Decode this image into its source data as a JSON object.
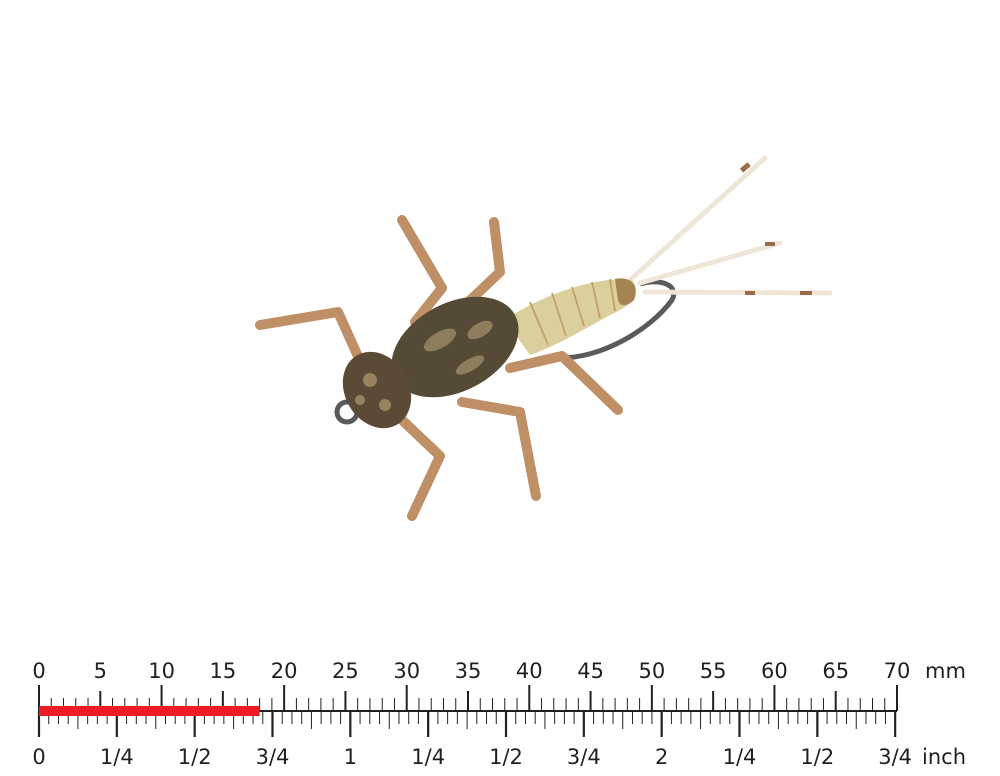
{
  "ruler": {
    "mm_unit": "mm",
    "inch_unit": "inch",
    "mm_labels": [
      "0",
      "5",
      "10",
      "15",
      "20",
      "25",
      "30",
      "35",
      "40",
      "45",
      "50",
      "55",
      "60",
      "65",
      "70"
    ],
    "inch_labels": [
      "0",
      "1/4",
      "1/2",
      "3/4",
      "1",
      "1/4",
      "1/2",
      "3/4",
      "2",
      "1/4",
      "1/2",
      "3/4"
    ],
    "mm_max": 70,
    "measured_length_mm": 18,
    "highlight_color": "#ed1c24",
    "line_color": "#231f20"
  },
  "subject": {
    "colors": {
      "legs": "#b8865a",
      "thorax": "#4e4433",
      "abdomen": "#dccf9e",
      "hook": "#555555",
      "tails": "#f2ebe0"
    }
  }
}
